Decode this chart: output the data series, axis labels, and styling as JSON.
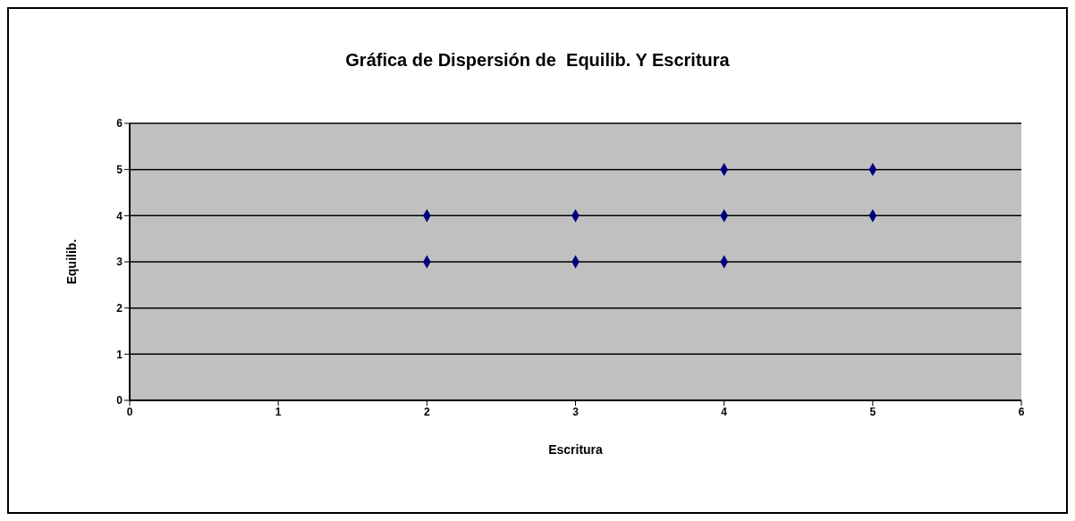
{
  "chart_data": {
    "type": "scatter",
    "title": "Gráfica de Dispersión de  Equilib. Y Escritura",
    "xlabel": "Escritura",
    "ylabel": "Equilib.",
    "x": [
      2,
      2,
      3,
      3,
      4,
      4,
      4,
      5,
      5
    ],
    "series": [
      {
        "color": "#000080",
        "values": [
          4,
          3,
          4,
          3,
          5,
          4,
          3,
          5,
          4
        ]
      }
    ],
    "xlim": [
      0,
      6
    ],
    "xticks": [
      0,
      1,
      2,
      3,
      4,
      5,
      6
    ],
    "ylim": [
      0,
      6
    ],
    "yticks": [
      0,
      1,
      2,
      3,
      4,
      5,
      6
    ],
    "grid": "y",
    "marker": "diamond",
    "legend": false
  }
}
